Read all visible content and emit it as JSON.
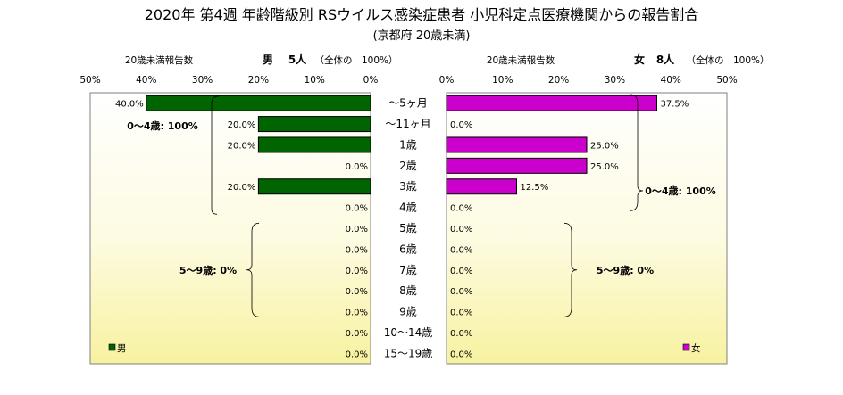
{
  "chart_data": {
    "type": "bar",
    "title": "2020年 第4週 年齢階級別 RSウイルス感染症患者 小児科定点医療機関からの報告割合",
    "subtitle": "(京都府 20歳未満)",
    "categories": [
      "～5ヶ月",
      "～11ヶ月",
      "1歳",
      "2歳",
      "3歳",
      "4歳",
      "5歳",
      "6歳",
      "7歳",
      "8歳",
      "9歳",
      "10～14歳",
      "15～19歳"
    ],
    "xlim": [
      0,
      50
    ],
    "ticks": [
      "50%",
      "40%",
      "30%",
      "20%",
      "10%",
      "0%"
    ],
    "ticks_right": [
      "0%",
      "10%",
      "20%",
      "30%",
      "40%",
      "50%"
    ],
    "grid": false,
    "panels": [
      {
        "side": "left",
        "top_label": "20歳未満報告数",
        "sex_label": "男",
        "count_label": "5人",
        "total_label": "（全体の　100%）",
        "legend": "男",
        "color": "#006400",
        "values": [
          40.0,
          20.0,
          20.0,
          0.0,
          20.0,
          0.0,
          0.0,
          0.0,
          0.0,
          0.0,
          0.0,
          0.0,
          0.0
        ],
        "value_labels": [
          "40.0%",
          "20.0%",
          "20.0%",
          "0.0%",
          "20.0%",
          "0.0%",
          "0.0%",
          "0.0%",
          "0.0%",
          "0.0%",
          "0.0%",
          "0.0%",
          "0.0%"
        ],
        "annotations": [
          {
            "text": "0～4歳: 100%",
            "from": 0,
            "to": 5
          },
          {
            "text": "5～9歳: 0%",
            "from": 6,
            "to": 10
          }
        ]
      },
      {
        "side": "right",
        "top_label": "20歳未満報告数",
        "sex_label": "女",
        "count_label": "8人",
        "total_label": "（全体の　100%）",
        "legend": "女",
        "color": "#cc00cc",
        "values": [
          37.5,
          0.0,
          25.0,
          25.0,
          12.5,
          0.0,
          0.0,
          0.0,
          0.0,
          0.0,
          0.0,
          0.0,
          0.0
        ],
        "value_labels": [
          "37.5%",
          "0.0%",
          "25.0%",
          "25.0%",
          "12.5%",
          "0.0%",
          "0.0%",
          "0.0%",
          "0.0%",
          "0.0%",
          "0.0%",
          "0.0%",
          "0.0%"
        ],
        "annotations": [
          {
            "text": "0～4歳: 100%",
            "from": 0,
            "to": 5
          },
          {
            "text": "5～9歳: 0%",
            "from": 6,
            "to": 10
          }
        ]
      }
    ]
  }
}
